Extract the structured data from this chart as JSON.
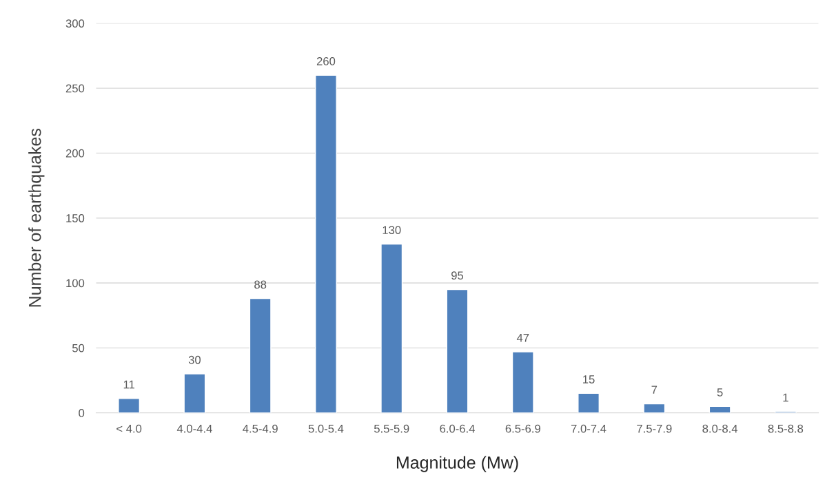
{
  "chart_data": {
    "type": "bar",
    "xlabel": "Magnitude (Mw)",
    "ylabel": "Number of earthquakes",
    "categories": [
      "< 4.0",
      "4.0-4.4",
      "4.5-4.9",
      "5.0-5.4",
      "5.5-5.9",
      "6.0-6.4",
      "6.5-6.9",
      "7.0-7.4",
      "7.5-7.9",
      "8.0-8.4",
      "8.5-8.8"
    ],
    "values": [
      11,
      30,
      88,
      260,
      130,
      95,
      47,
      15,
      7,
      5,
      1
    ],
    "color": "#4f81bd",
    "ylim": [
      0,
      300
    ],
    "yticks": [
      0,
      50,
      100,
      150,
      200,
      250,
      300
    ],
    "grid": "y",
    "data_labels": true,
    "legend": false
  }
}
